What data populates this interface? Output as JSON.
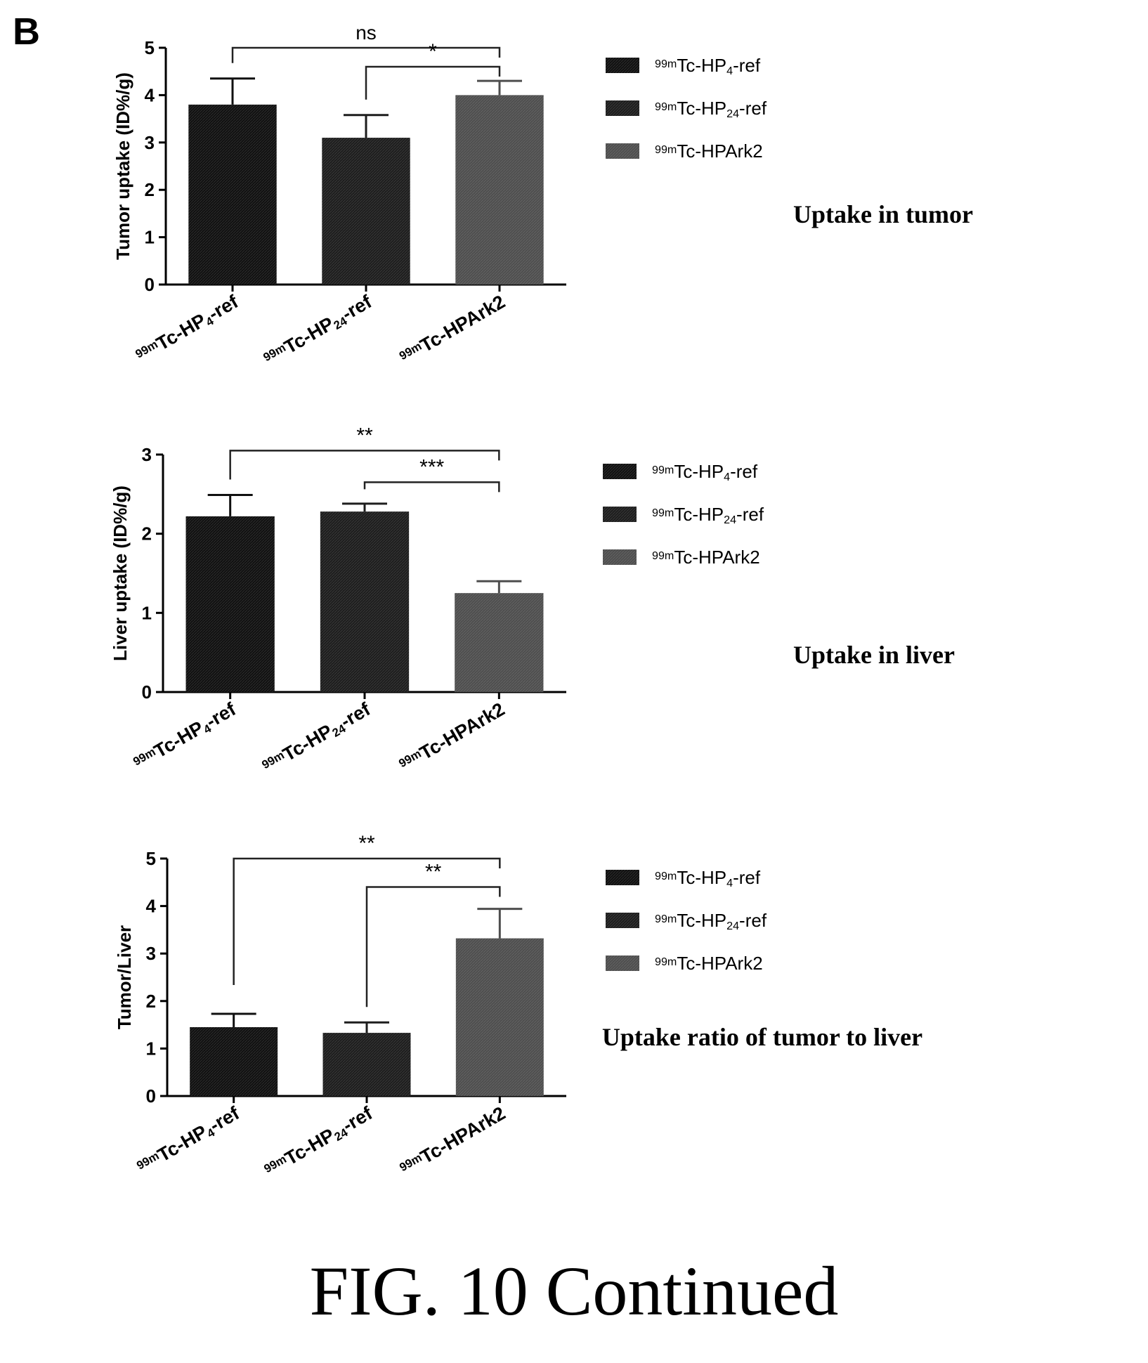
{
  "panel_letter": "B",
  "caption": "FIG. 10 Continued",
  "colors": {
    "bar_hp4": "#101010",
    "bar_hp24": "#1d1d1d",
    "bar_ark2": "#4e4e4e"
  },
  "chart_data": [
    {
      "type": "bar",
      "panel_title": "Uptake in tumor",
      "ylabel": "Tumor uptake (ID%/g)",
      "xlabel": "",
      "ylim": [
        0,
        5
      ],
      "yticks": [
        0,
        1,
        2,
        3,
        4,
        5
      ],
      "categories": [
        {
          "sup": "99m",
          "main": "Tc-HP",
          "sub": "4",
          "tail": "-ref"
        },
        {
          "sup": "99m",
          "main": "Tc-HP",
          "sub": "24",
          "tail": "-ref"
        },
        {
          "sup": "99m",
          "main": "Tc-HPArk2",
          "sub": "",
          "tail": ""
        }
      ],
      "values": [
        3.8,
        3.1,
        4.0
      ],
      "errors": [
        0.55,
        0.48,
        0.3
      ],
      "legend": [
        {
          "sup": "99m",
          "main": "Tc-HP",
          "sub": "4",
          "tail": "-ref"
        },
        {
          "sup": "99m",
          "main": "Tc-HP",
          "sub": "24",
          "tail": "-ref"
        },
        {
          "sup": "99m",
          "main": "Tc-HPArk2",
          "sub": "",
          "tail": ""
        }
      ],
      "legend_position": "right",
      "significance": [
        {
          "from": 0,
          "to": 2,
          "label": "ns",
          "level": 5.0
        },
        {
          "from": 1,
          "to": 2,
          "label": "*",
          "level": 4.6
        }
      ]
    },
    {
      "type": "bar",
      "panel_title": "Uptake in liver",
      "ylabel": "Liver uptake (ID%/g)",
      "xlabel": "",
      "ylim": [
        0,
        3
      ],
      "yticks": [
        0,
        1,
        2,
        3
      ],
      "categories": [
        {
          "sup": "99m",
          "main": "Tc-HP",
          "sub": "4",
          "tail": "-ref"
        },
        {
          "sup": "99m",
          "main": "Tc-HP",
          "sub": "24",
          "tail": "-ref"
        },
        {
          "sup": "99m",
          "main": "Tc-HPArk2",
          "sub": "",
          "tail": ""
        }
      ],
      "values": [
        2.22,
        2.28,
        1.25
      ],
      "errors": [
        0.27,
        0.1,
        0.15
      ],
      "legend": [
        {
          "sup": "99m",
          "main": "Tc-HP",
          "sub": "4",
          "tail": "-ref"
        },
        {
          "sup": "99m",
          "main": "Tc-HP",
          "sub": "24",
          "tail": "-ref"
        },
        {
          "sup": "99m",
          "main": "Tc-HPArk2",
          "sub": "",
          "tail": ""
        }
      ],
      "legend_position": "right",
      "significance": [
        {
          "from": 0,
          "to": 2,
          "label": "**",
          "level": 3.05
        },
        {
          "from": 1,
          "to": 2,
          "label": "***",
          "level": 2.65
        }
      ]
    },
    {
      "type": "bar",
      "panel_title": "Uptake ratio of tumor to liver",
      "ylabel": "Tumor/Liver",
      "xlabel": "",
      "ylim": [
        0,
        5
      ],
      "yticks": [
        0,
        1,
        2,
        3,
        4,
        5
      ],
      "categories": [
        {
          "sup": "99m",
          "main": "Tc-HP",
          "sub": "4",
          "tail": "-ref"
        },
        {
          "sup": "99m",
          "main": "Tc-HP",
          "sub": "24",
          "tail": "-ref"
        },
        {
          "sup": "99m",
          "main": "Tc-HPArk2",
          "sub": "",
          "tail": ""
        }
      ],
      "values": [
        1.45,
        1.33,
        3.32
      ],
      "errors": [
        0.28,
        0.22,
        0.62
      ],
      "legend": [
        {
          "sup": "99m",
          "main": "Tc-HP",
          "sub": "4",
          "tail": "-ref"
        },
        {
          "sup": "99m",
          "main": "Tc-HP",
          "sub": "24",
          "tail": "-ref"
        },
        {
          "sup": "99m",
          "main": "Tc-HPArk2",
          "sub": "",
          "tail": ""
        }
      ],
      "legend_position": "right",
      "significance": [
        {
          "from": 0,
          "to": 2,
          "label": "**",
          "level": 5.0
        },
        {
          "from": 1,
          "to": 2,
          "label": "**",
          "level": 4.4
        }
      ]
    }
  ]
}
